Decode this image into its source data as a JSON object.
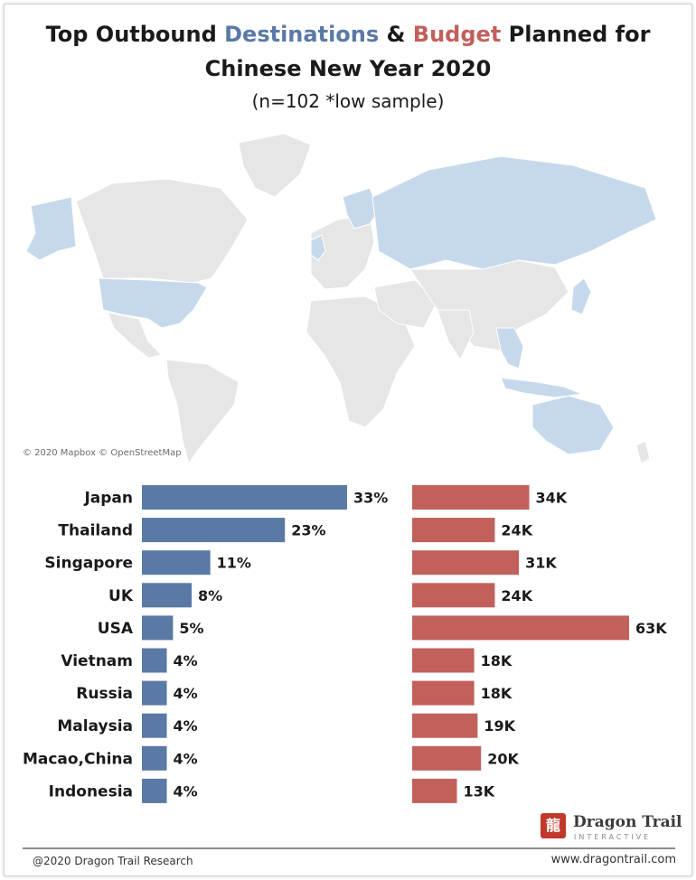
{
  "title": {
    "part1": "Top Outbound ",
    "destinations": "Destinations",
    "amp": " & ",
    "budget": "Budget",
    "part2": " Planned for",
    "line2": "Chinese New Year 2020",
    "line3": "(n=102 *low sample)"
  },
  "map": {
    "credit": "© 2020 Mapbox © OpenStreetMap",
    "highlight_color": "#c6d9ec",
    "base_color": "#e6e6e6"
  },
  "colors": {
    "destination_bar": "#5a79a5",
    "budget_bar": "#c2605c"
  },
  "chart_data": [
    {
      "type": "bar",
      "orientation": "horizontal",
      "categories": [
        "Japan",
        "Thailand",
        "Singapore",
        "UK",
        "USA",
        "Vietnam",
        "Russia",
        "Malaysia",
        "Macao,China",
        "Indonesia"
      ],
      "values": [
        33,
        23,
        11,
        8,
        5,
        4,
        4,
        4,
        4,
        4
      ],
      "labels": [
        "33%",
        "23%",
        "11%",
        "8%",
        "5%",
        "4%",
        "4%",
        "4%",
        "4%",
        "4%"
      ],
      "unit": "%"
    },
    {
      "type": "bar",
      "orientation": "horizontal",
      "categories": [
        "Japan",
        "Thailand",
        "Singapore",
        "UK",
        "USA",
        "Vietnam",
        "Russia",
        "Malaysia",
        "Macao,China",
        "Indonesia"
      ],
      "values": [
        34,
        24,
        31,
        24,
        63,
        18,
        18,
        19,
        20,
        13
      ],
      "labels": [
        "34K",
        "24K",
        "31K",
        "24K",
        "63K",
        "18K",
        "18K",
        "19K",
        "20K",
        "13K"
      ],
      "unit": "K"
    }
  ],
  "logo": {
    "name": "Dragon Trail",
    "sub": "INTERACTIVE",
    "mark": "龍"
  },
  "footer": {
    "left": "@2020 Dragon Trail Research",
    "right": "www.dragontrail.com"
  }
}
